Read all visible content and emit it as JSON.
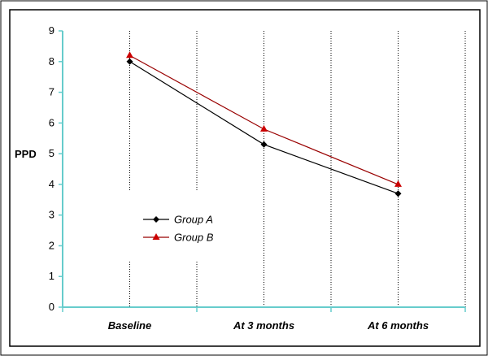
{
  "chart_data": {
    "type": "line",
    "categories": [
      "Baseline",
      "At 3 months",
      "At 6 months"
    ],
    "series": [
      {
        "name": "Group A",
        "values": [
          8.0,
          5.3,
          3.7
        ],
        "color": "#000000",
        "marker": "diamond"
      },
      {
        "name": "Group B",
        "values": [
          8.2,
          5.8,
          4.0
        ],
        "color": "#cc0000",
        "marker": "triangle"
      }
    ],
    "ylabel": "PPD",
    "xlabel": "",
    "ylim": [
      0,
      9
    ],
    "yticks": [
      "0",
      "1",
      "2",
      "3",
      "4",
      "5",
      "6",
      "7",
      "8",
      "9"
    ],
    "grid": "vertical dotted",
    "legend": "center-left",
    "axis_color": "#66cccc",
    "line_color_a": "#000000",
    "line_color_b": "#990000"
  }
}
